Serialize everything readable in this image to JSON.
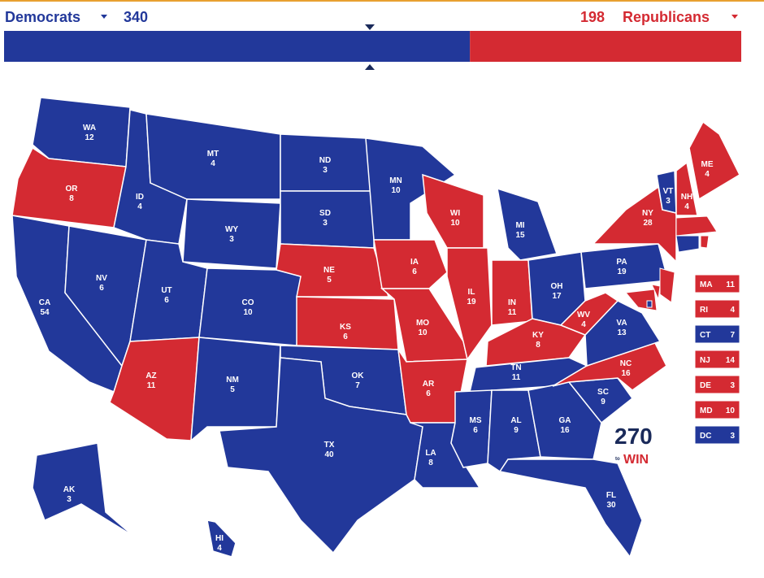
{
  "header": {
    "democrats": {
      "label": "Democrats",
      "votes": 340,
      "color": "#22389a"
    },
    "republicans": {
      "label": "Republicans",
      "votes": 198,
      "color": "#d42a32"
    }
  },
  "states": [
    {
      "abbr": "WA",
      "ev": 12,
      "color": "#22389a"
    },
    {
      "abbr": "OR",
      "ev": 8,
      "color": "#d42a32"
    },
    {
      "abbr": "CA",
      "ev": 54,
      "color": "#22389a"
    },
    {
      "abbr": "NV",
      "ev": 6,
      "color": "#22389a"
    },
    {
      "abbr": "ID",
      "ev": 4,
      "color": "#22389a"
    },
    {
      "abbr": "MT",
      "ev": 4,
      "color": "#22389a"
    },
    {
      "abbr": "WY",
      "ev": 3,
      "color": "#22389a"
    },
    {
      "abbr": "UT",
      "ev": 6,
      "color": "#22389a"
    },
    {
      "abbr": "CO",
      "ev": 10,
      "color": "#22389a"
    },
    {
      "abbr": "AZ",
      "ev": 11,
      "color": "#d42a32"
    },
    {
      "abbr": "NM",
      "ev": 5,
      "color": "#22389a"
    },
    {
      "abbr": "ND",
      "ev": 3,
      "color": "#22389a"
    },
    {
      "abbr": "SD",
      "ev": 3,
      "color": "#22389a"
    },
    {
      "abbr": "NE",
      "ev": 5,
      "color": "#d42a32"
    },
    {
      "abbr": "KS",
      "ev": 6,
      "color": "#d42a32"
    },
    {
      "abbr": "OK",
      "ev": 7,
      "color": "#22389a"
    },
    {
      "abbr": "TX",
      "ev": 40,
      "color": "#22389a"
    },
    {
      "abbr": "MN",
      "ev": 10,
      "color": "#22389a"
    },
    {
      "abbr": "IA",
      "ev": 6,
      "color": "#d42a32"
    },
    {
      "abbr": "MO",
      "ev": 10,
      "color": "#d42a32"
    },
    {
      "abbr": "AR",
      "ev": 6,
      "color": "#d42a32"
    },
    {
      "abbr": "LA",
      "ev": 8,
      "color": "#22389a"
    },
    {
      "abbr": "WI",
      "ev": 10,
      "color": "#d42a32"
    },
    {
      "abbr": "IL",
      "ev": 19,
      "color": "#d42a32"
    },
    {
      "abbr": "MI",
      "ev": 15,
      "color": "#22389a"
    },
    {
      "abbr": "IN",
      "ev": 11,
      "color": "#d42a32"
    },
    {
      "abbr": "OH",
      "ev": 17,
      "color": "#22389a"
    },
    {
      "abbr": "KY",
      "ev": 8,
      "color": "#d42a32"
    },
    {
      "abbr": "TN",
      "ev": 11,
      "color": "#22389a"
    },
    {
      "abbr": "MS",
      "ev": 6,
      "color": "#22389a"
    },
    {
      "abbr": "AL",
      "ev": 9,
      "color": "#22389a"
    },
    {
      "abbr": "GA",
      "ev": 16,
      "color": "#22389a"
    },
    {
      "abbr": "FL",
      "ev": 30,
      "color": "#22389a"
    },
    {
      "abbr": "SC",
      "ev": 9,
      "color": "#22389a"
    },
    {
      "abbr": "NC",
      "ev": 16,
      "color": "#d42a32"
    },
    {
      "abbr": "VA",
      "ev": 13,
      "color": "#22389a"
    },
    {
      "abbr": "WV",
      "ev": 4,
      "color": "#d42a32"
    },
    {
      "abbr": "PA",
      "ev": 19,
      "color": "#22389a"
    },
    {
      "abbr": "NY",
      "ev": 28,
      "color": "#d42a32"
    },
    {
      "abbr": "VT",
      "ev": 3,
      "color": "#22389a"
    },
    {
      "abbr": "NH",
      "ev": 4,
      "color": "#d42a32"
    },
    {
      "abbr": "ME",
      "ev": 4,
      "color": "#d42a32"
    },
    {
      "abbr": "AK",
      "ev": 3,
      "color": "#22389a"
    },
    {
      "abbr": "HI",
      "ev": 4,
      "color": "#22389a"
    }
  ],
  "inset_states": [
    {
      "abbr": "MA",
      "ev": 11,
      "color": "#d42a32"
    },
    {
      "abbr": "RI",
      "ev": 4,
      "color": "#d42a32"
    },
    {
      "abbr": "CT",
      "ev": 7,
      "color": "#22389a"
    },
    {
      "abbr": "NJ",
      "ev": 14,
      "color": "#d42a32"
    },
    {
      "abbr": "DE",
      "ev": 3,
      "color": "#d42a32"
    },
    {
      "abbr": "MD",
      "ev": 10,
      "color": "#d42a32"
    },
    {
      "abbr": "DC",
      "ev": 3,
      "color": "#22389a"
    }
  ],
  "logo": {
    "number": "270",
    "small": "to",
    "word": "WIN"
  }
}
